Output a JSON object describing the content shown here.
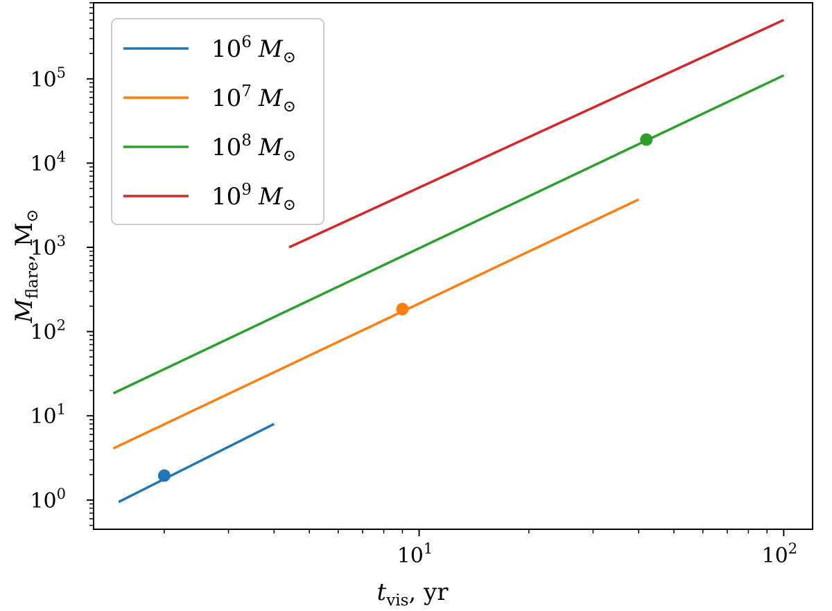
{
  "chart_data": {
    "type": "line",
    "xscale": "log",
    "yscale": "log",
    "xlim": [
      1.28,
      120
    ],
    "ylim": [
      0.45,
      800000
    ],
    "x_ticks": [
      {
        "value": 10,
        "base": "10",
        "exp": "1"
      },
      {
        "value": 100,
        "base": "10",
        "exp": "2"
      }
    ],
    "y_ticks": [
      {
        "value": 1,
        "base": "10",
        "exp": "0"
      },
      {
        "value": 10,
        "base": "10",
        "exp": "1"
      },
      {
        "value": 100,
        "base": "10",
        "exp": "2"
      },
      {
        "value": 1000,
        "base": "10",
        "exp": "3"
      },
      {
        "value": 10000,
        "base": "10",
        "exp": "4"
      },
      {
        "value": 100000,
        "base": "10",
        "exp": "5"
      }
    ],
    "xlabel": {
      "main": "t",
      "sub": "vis",
      "suffix": ", yr"
    },
    "ylabel": {
      "main": "M",
      "sub": "flare",
      "suffix": ", M",
      "suffix_sub": "⊙"
    },
    "grid": false,
    "legend_position": "upper-left",
    "series": [
      {
        "name": "10^6 M⊙",
        "legend_base": "10",
        "legend_exp": "6",
        "legend_unit": "M",
        "legend_unit_sub": "⊙",
        "color": "#1f77b4",
        "x": [
          1.5,
          4.0
        ],
        "y": [
          0.95,
          8.0
        ],
        "marker": {
          "x": 2.0,
          "y": 1.95
        }
      },
      {
        "name": "10^7 M⊙",
        "legend_base": "10",
        "legend_exp": "7",
        "legend_unit": "M",
        "legend_unit_sub": "⊙",
        "color": "#ff7f0e",
        "x": [
          1.45,
          40.0
        ],
        "y": [
          4.1,
          3700
        ],
        "marker": {
          "x": 9.0,
          "y": 185
        }
      },
      {
        "name": "10^8 M⊙",
        "legend_base": "10",
        "legend_exp": "8",
        "legend_unit": "M",
        "legend_unit_sub": "⊙",
        "color": "#2ca02c",
        "x": [
          1.45,
          100.0
        ],
        "y": [
          18.5,
          110000
        ],
        "marker": {
          "x": 42.0,
          "y": 19000
        }
      },
      {
        "name": "10^9 M⊙",
        "legend_base": "10",
        "legend_exp": "9",
        "legend_unit": "M",
        "legend_unit_sub": "⊙",
        "color": "#d62728",
        "x": [
          4.4,
          100.0
        ],
        "y": [
          1000,
          500000
        ],
        "marker": null
      }
    ]
  }
}
